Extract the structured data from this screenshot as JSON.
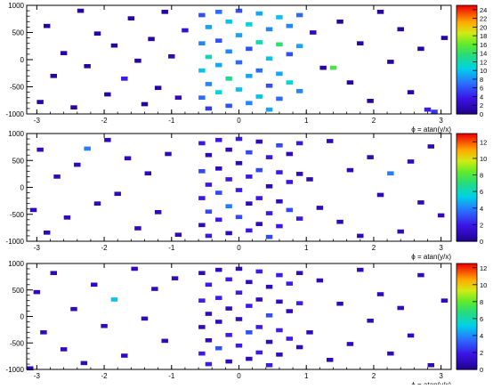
{
  "figure": {
    "panels": [
      {
        "xlabel": "ϕ = atan(y/x)",
        "x_ticks": [
          -3,
          -2,
          -1,
          0,
          1,
          2,
          3
        ],
        "y_ticks": [
          -1000,
          -500,
          0,
          500,
          1000
        ],
        "x_range": [
          -3.15,
          3.15
        ],
        "y_range": [
          -1000,
          1000
        ],
        "z_max": 25,
        "z_ticks": [
          0,
          2,
          4,
          6,
          8,
          10,
          12,
          14,
          16,
          18,
          20,
          22,
          24
        ]
      },
      {
        "xlabel": "ϕ = atan(y/x)",
        "x_ticks": [
          -3,
          -2,
          -1,
          0,
          1,
          2,
          3
        ],
        "y_ticks": [
          -1000,
          -500,
          0,
          500,
          1000
        ],
        "x_range": [
          -3.15,
          3.15
        ],
        "y_range": [
          -1000,
          1000
        ],
        "z_max": 13,
        "z_ticks": [
          0,
          2,
          4,
          6,
          8,
          10,
          12
        ]
      },
      {
        "xlabel": "ϕ = atan(y/x)",
        "x_ticks": [
          -3,
          -2,
          -1,
          0,
          1,
          2,
          3
        ],
        "y_ticks": [
          -1000,
          -500,
          0,
          500,
          1000
        ],
        "x_range": [
          -3.15,
          3.15
        ],
        "y_range": [
          -1000,
          1000
        ],
        "z_max": 12.5,
        "z_ticks": [
          0,
          2,
          4,
          6,
          8,
          10,
          12
        ]
      }
    ]
  },
  "chart_data": [
    {
      "type": "heatmap",
      "xlabel": "ϕ = atan(y/x)",
      "ylabel": "",
      "xlim": [
        -3.15,
        3.15
      ],
      "ylim": [
        -1000,
        1000
      ],
      "colorbar": {
        "min": 0,
        "max": 25,
        "ticks": [
          0,
          2,
          4,
          6,
          8,
          10,
          12,
          14,
          16,
          18,
          20,
          22,
          24
        ]
      },
      "cells": [
        [
          -2.95,
          -780,
          1
        ],
        [
          -2.85,
          620,
          1
        ],
        [
          -2.75,
          -300,
          1
        ],
        [
          -2.6,
          120,
          1
        ],
        [
          -2.45,
          -880,
          1
        ],
        [
          -2.35,
          900,
          1
        ],
        [
          -2.25,
          -120,
          1
        ],
        [
          -2.1,
          480,
          1
        ],
        [
          -1.95,
          -640,
          1
        ],
        [
          -1.85,
          260,
          1
        ],
        [
          -1.7,
          -350,
          4
        ],
        [
          -1.6,
          760,
          1
        ],
        [
          -1.5,
          -20,
          1
        ],
        [
          -1.4,
          -820,
          1
        ],
        [
          -1.3,
          380,
          1
        ],
        [
          -1.2,
          -520,
          1
        ],
        [
          -1.1,
          880,
          1
        ],
        [
          -1.0,
          60,
          2
        ],
        [
          -0.9,
          -700,
          2
        ],
        [
          -0.8,
          540,
          3
        ],
        [
          -0.55,
          820,
          6
        ],
        [
          -0.55,
          300,
          8
        ],
        [
          -0.55,
          -200,
          10
        ],
        [
          -0.55,
          -700,
          7
        ],
        [
          -0.45,
          600,
          9
        ],
        [
          -0.45,
          50,
          12
        ],
        [
          -0.45,
          -450,
          8
        ],
        [
          -0.45,
          -900,
          5
        ],
        [
          -0.3,
          880,
          7
        ],
        [
          -0.3,
          350,
          6
        ],
        [
          -0.3,
          -100,
          9
        ],
        [
          -0.3,
          -600,
          11
        ],
        [
          -0.15,
          700,
          10
        ],
        [
          -0.15,
          150,
          8
        ],
        [
          -0.15,
          -350,
          13
        ],
        [
          -0.15,
          -850,
          6
        ],
        [
          0.0,
          900,
          6
        ],
        [
          0.0,
          450,
          9
        ],
        [
          0.0,
          -50,
          7
        ],
        [
          0.0,
          -550,
          10
        ],
        [
          0.15,
          650,
          11
        ],
        [
          0.15,
          200,
          6
        ],
        [
          0.15,
          -300,
          9
        ],
        [
          0.15,
          -800,
          8
        ],
        [
          0.3,
          850,
          9
        ],
        [
          0.3,
          320,
          12
        ],
        [
          0.3,
          -200,
          7
        ],
        [
          0.3,
          -680,
          10
        ],
        [
          0.45,
          560,
          8
        ],
        [
          0.45,
          20,
          10
        ],
        [
          0.45,
          -480,
          6
        ],
        [
          0.45,
          -920,
          9
        ],
        [
          0.6,
          780,
          10
        ],
        [
          0.6,
          280,
          14
        ],
        [
          0.6,
          -260,
          9
        ],
        [
          0.6,
          -720,
          7
        ],
        [
          0.75,
          620,
          8
        ],
        [
          0.75,
          100,
          6
        ],
        [
          0.75,
          -420,
          11
        ],
        [
          0.9,
          820,
          7
        ],
        [
          0.9,
          250,
          9
        ],
        [
          0.9,
          -580,
          8
        ],
        [
          1.1,
          500,
          2
        ],
        [
          1.25,
          -150,
          1
        ],
        [
          1.4,
          -150,
          15
        ],
        [
          1.5,
          700,
          1
        ],
        [
          1.65,
          -420,
          1
        ],
        [
          1.8,
          300,
          1
        ],
        [
          1.95,
          -760,
          1
        ],
        [
          2.1,
          880,
          1
        ],
        [
          2.25,
          -40,
          1
        ],
        [
          2.4,
          560,
          1
        ],
        [
          2.55,
          -600,
          1
        ],
        [
          2.7,
          200,
          1
        ],
        [
          2.8,
          -920,
          4
        ],
        [
          2.9,
          -960,
          5
        ],
        [
          3.05,
          400,
          1
        ]
      ]
    },
    {
      "type": "heatmap",
      "xlabel": "ϕ = atan(y/x)",
      "ylabel": "",
      "xlim": [
        -3.15,
        3.15
      ],
      "ylim": [
        -1000,
        1000
      ],
      "colorbar": {
        "min": 0,
        "max": 13,
        "ticks": [
          0,
          2,
          4,
          6,
          8,
          10,
          12
        ]
      },
      "cells": [
        [
          -3.05,
          -420,
          1
        ],
        [
          -2.95,
          700,
          1
        ],
        [
          -2.85,
          -840,
          1
        ],
        [
          -2.7,
          200,
          1
        ],
        [
          -2.55,
          -560,
          1
        ],
        [
          -2.4,
          420,
          1
        ],
        [
          -2.25,
          720,
          4
        ],
        [
          -2.1,
          -300,
          1
        ],
        [
          -1.95,
          880,
          1
        ],
        [
          -1.8,
          -120,
          1
        ],
        [
          -1.65,
          540,
          1
        ],
        [
          -1.5,
          -760,
          1
        ],
        [
          -1.35,
          260,
          1
        ],
        [
          -1.2,
          -460,
          1
        ],
        [
          -1.05,
          620,
          1
        ],
        [
          -0.9,
          -880,
          1
        ],
        [
          -0.55,
          820,
          2
        ],
        [
          -0.55,
          300,
          3
        ],
        [
          -0.55,
          -200,
          2
        ],
        [
          -0.55,
          -700,
          1
        ],
        [
          -0.45,
          600,
          1
        ],
        [
          -0.45,
          50,
          2
        ],
        [
          -0.45,
          -450,
          3
        ],
        [
          -0.45,
          -900,
          2
        ],
        [
          -0.3,
          880,
          2
        ],
        [
          -0.3,
          350,
          1
        ],
        [
          -0.3,
          -100,
          3
        ],
        [
          -0.3,
          -600,
          2
        ],
        [
          -0.15,
          700,
          1
        ],
        [
          -0.15,
          150,
          2
        ],
        [
          -0.15,
          -350,
          4
        ],
        [
          -0.15,
          -850,
          1
        ],
        [
          0.0,
          900,
          2
        ],
        [
          0.0,
          450,
          1
        ],
        [
          0.0,
          -50,
          2
        ],
        [
          0.0,
          -550,
          3
        ],
        [
          0.15,
          650,
          3
        ],
        [
          0.15,
          200,
          2
        ],
        [
          0.15,
          -300,
          1
        ],
        [
          0.15,
          -800,
          2
        ],
        [
          0.3,
          850,
          1
        ],
        [
          0.3,
          320,
          3
        ],
        [
          0.3,
          -200,
          2
        ],
        [
          0.3,
          -680,
          1
        ],
        [
          0.45,
          560,
          2
        ],
        [
          0.45,
          20,
          1
        ],
        [
          0.45,
          -480,
          2
        ],
        [
          0.45,
          -920,
          3
        ],
        [
          0.6,
          780,
          3
        ],
        [
          0.6,
          280,
          2
        ],
        [
          0.6,
          -260,
          1
        ],
        [
          0.6,
          -720,
          2
        ],
        [
          0.75,
          620,
          1
        ],
        [
          0.75,
          100,
          2
        ],
        [
          0.75,
          -420,
          3
        ],
        [
          0.9,
          820,
          2
        ],
        [
          0.9,
          250,
          1
        ],
        [
          0.9,
          -580,
          2
        ],
        [
          1.05,
          150,
          1
        ],
        [
          1.2,
          -380,
          1
        ],
        [
          1.35,
          860,
          1
        ],
        [
          1.5,
          -640,
          1
        ],
        [
          1.65,
          320,
          1
        ],
        [
          1.8,
          -900,
          1
        ],
        [
          1.95,
          560,
          1
        ],
        [
          2.1,
          -140,
          1
        ],
        [
          2.25,
          260,
          4
        ],
        [
          2.4,
          -820,
          1
        ],
        [
          2.55,
          480,
          1
        ],
        [
          2.7,
          -280,
          1
        ],
        [
          2.85,
          760,
          1
        ],
        [
          3.0,
          -520,
          1
        ]
      ]
    },
    {
      "type": "heatmap",
      "xlabel": "ϕ = atan(y/x)",
      "ylabel": "",
      "xlim": [
        -3.15,
        3.15
      ],
      "ylim": [
        -1000,
        1000
      ],
      "colorbar": {
        "min": 0,
        "max": 12.5,
        "ticks": [
          0,
          2,
          4,
          6,
          8,
          10,
          12
        ]
      },
      "cells": [
        [
          -3.1,
          -980,
          1
        ],
        [
          -3.0,
          460,
          1
        ],
        [
          -2.9,
          -300,
          1
        ],
        [
          -2.75,
          820,
          1
        ],
        [
          -2.6,
          -620,
          1
        ],
        [
          -2.45,
          140,
          1
        ],
        [
          -2.3,
          -880,
          1
        ],
        [
          -2.15,
          600,
          1
        ],
        [
          -2.0,
          -180,
          1
        ],
        [
          -1.85,
          320,
          5
        ],
        [
          -1.7,
          -740,
          1
        ],
        [
          -1.55,
          900,
          1
        ],
        [
          -1.4,
          -40,
          1
        ],
        [
          -1.25,
          520,
          1
        ],
        [
          -1.1,
          -460,
          1
        ],
        [
          -0.95,
          720,
          1
        ],
        [
          -0.55,
          820,
          1
        ],
        [
          -0.55,
          300,
          2
        ],
        [
          -0.55,
          -200,
          1
        ],
        [
          -0.55,
          -700,
          2
        ],
        [
          -0.45,
          600,
          2
        ],
        [
          -0.45,
          50,
          1
        ],
        [
          -0.45,
          -450,
          1
        ],
        [
          -0.45,
          -900,
          2
        ],
        [
          -0.3,
          880,
          1
        ],
        [
          -0.3,
          350,
          2
        ],
        [
          -0.3,
          -100,
          1
        ],
        [
          -0.3,
          -600,
          3
        ],
        [
          -0.15,
          700,
          2
        ],
        [
          -0.15,
          150,
          1
        ],
        [
          -0.15,
          -350,
          2
        ],
        [
          -0.15,
          -850,
          1
        ],
        [
          0.0,
          900,
          1
        ],
        [
          0.0,
          450,
          2
        ],
        [
          0.0,
          -50,
          1
        ],
        [
          0.0,
          -550,
          2
        ],
        [
          0.15,
          650,
          1
        ],
        [
          0.15,
          200,
          2
        ],
        [
          0.15,
          -300,
          3
        ],
        [
          0.15,
          -800,
          1
        ],
        [
          0.3,
          850,
          2
        ],
        [
          0.3,
          320,
          1
        ],
        [
          0.3,
          -200,
          2
        ],
        [
          0.3,
          -680,
          2
        ],
        [
          0.45,
          560,
          1
        ],
        [
          0.45,
          20,
          3
        ],
        [
          0.45,
          -480,
          1
        ],
        [
          0.45,
          -920,
          2
        ],
        [
          0.6,
          780,
          2
        ],
        [
          0.6,
          280,
          1
        ],
        [
          0.6,
          -260,
          2
        ],
        [
          0.6,
          -720,
          1
        ],
        [
          0.75,
          620,
          2
        ],
        [
          0.75,
          100,
          1
        ],
        [
          0.75,
          -420,
          2
        ],
        [
          0.9,
          820,
          1
        ],
        [
          0.9,
          250,
          2
        ],
        [
          0.9,
          -580,
          1
        ],
        [
          1.05,
          -300,
          1
        ],
        [
          1.2,
          680,
          1
        ],
        [
          1.35,
          -820,
          1
        ],
        [
          1.5,
          240,
          1
        ],
        [
          1.65,
          -520,
          1
        ],
        [
          1.8,
          880,
          1
        ],
        [
          1.95,
          -80,
          1
        ],
        [
          2.1,
          420,
          1
        ],
        [
          2.25,
          -700,
          1
        ],
        [
          2.4,
          160,
          1
        ],
        [
          2.55,
          -360,
          1
        ],
        [
          2.7,
          780,
          1
        ],
        [
          2.85,
          -920,
          1
        ],
        [
          3.05,
          300,
          1
        ]
      ]
    }
  ]
}
